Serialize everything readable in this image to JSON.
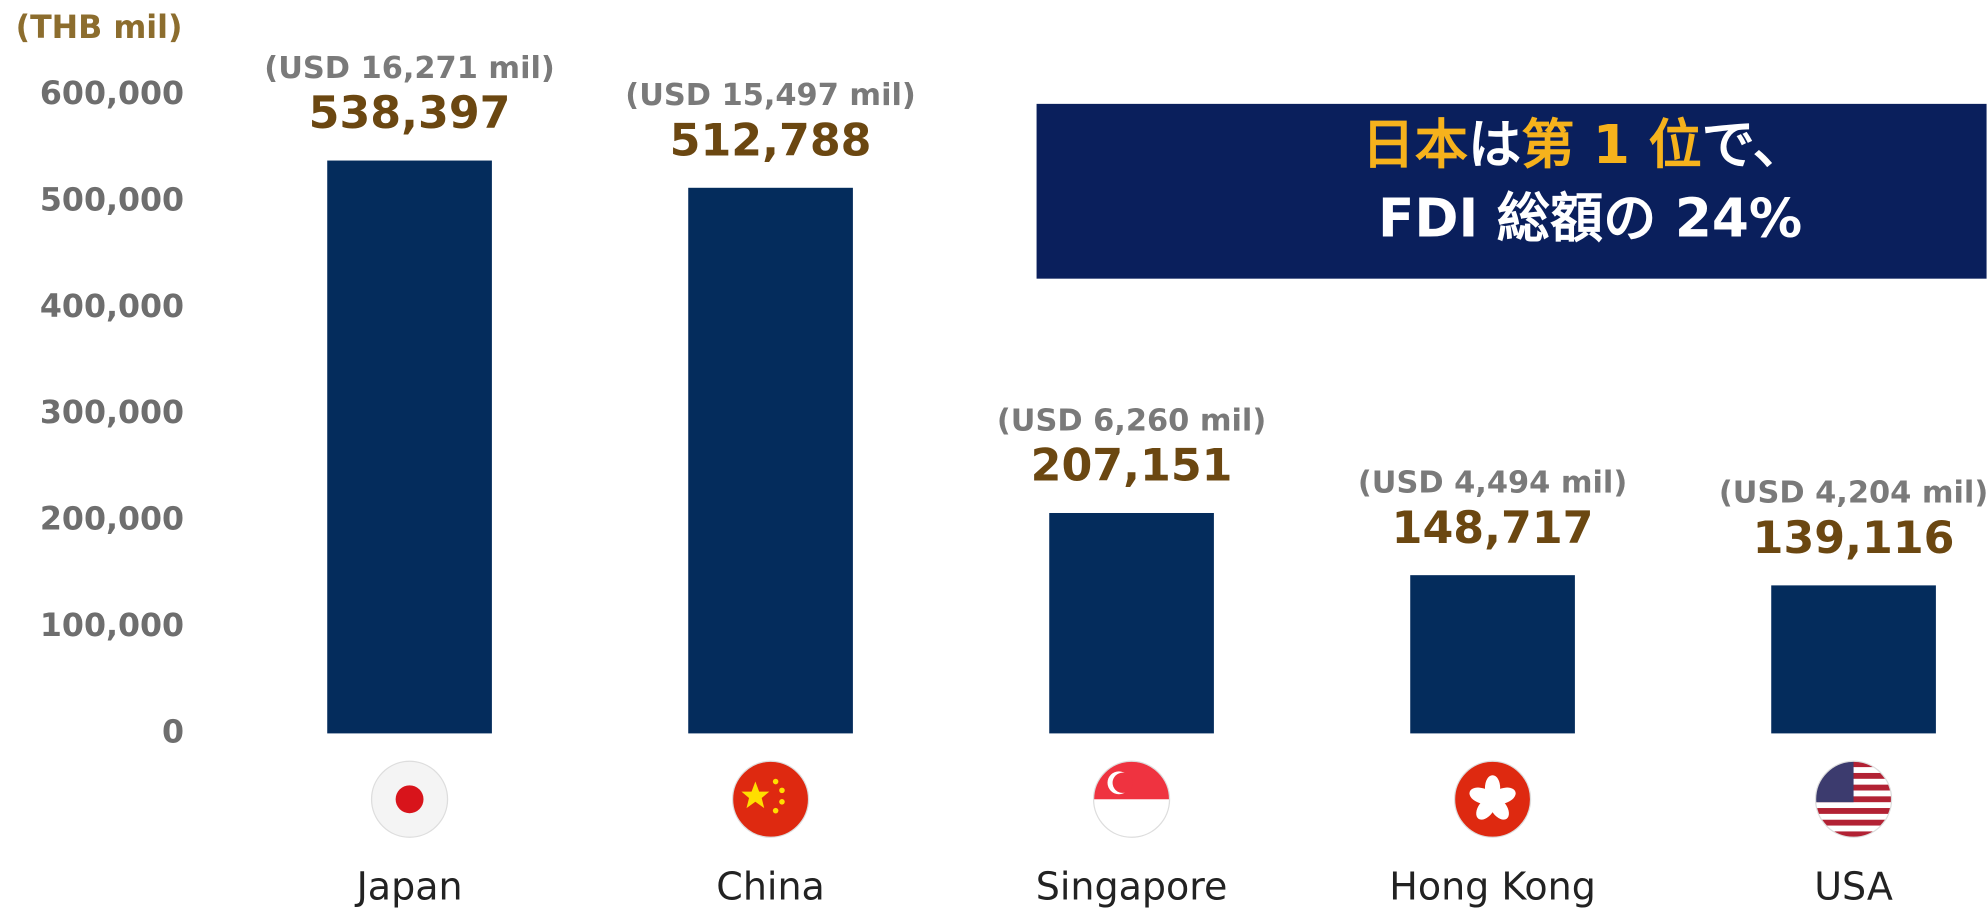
{
  "chart_data": {
    "type": "bar",
    "y_axis_label": "(THB mil)",
    "categories": [
      "Japan",
      "China",
      "Singapore",
      "Hong Kong",
      "USA"
    ],
    "values": [
      538397,
      512788,
      207151,
      148717,
      139116
    ],
    "value_labels": [
      "538,397",
      "512,788",
      "207,151",
      "148,717",
      "139,116"
    ],
    "usd_labels": [
      "(USD 16,271 mil)",
      "(USD 15,497 mil)",
      "(USD 6,260 mil)",
      "(USD 4,494 mil)",
      "(USD 4,204 mil)"
    ],
    "color": "#042c5c",
    "ylim": [
      0,
      600000
    ],
    "yticks": [
      0,
      {
        "value": 100000,
        "label": "100,000"
      },
      {
        "value": 200000,
        "label": "200,000"
      },
      {
        "value": 300000,
        "label": "300,000"
      },
      {
        "value": 400000,
        "label": "400,000"
      },
      {
        "value": 500000,
        "label": "500,000"
      },
      {
        "value": 600000,
        "label": "600,000"
      }
    ],
    "grid": false,
    "annotation": {
      "line1": [
        "日本",
        "は",
        "第 1 位",
        "で、"
      ],
      "line2": "FDI 総額の 24%"
    }
  }
}
